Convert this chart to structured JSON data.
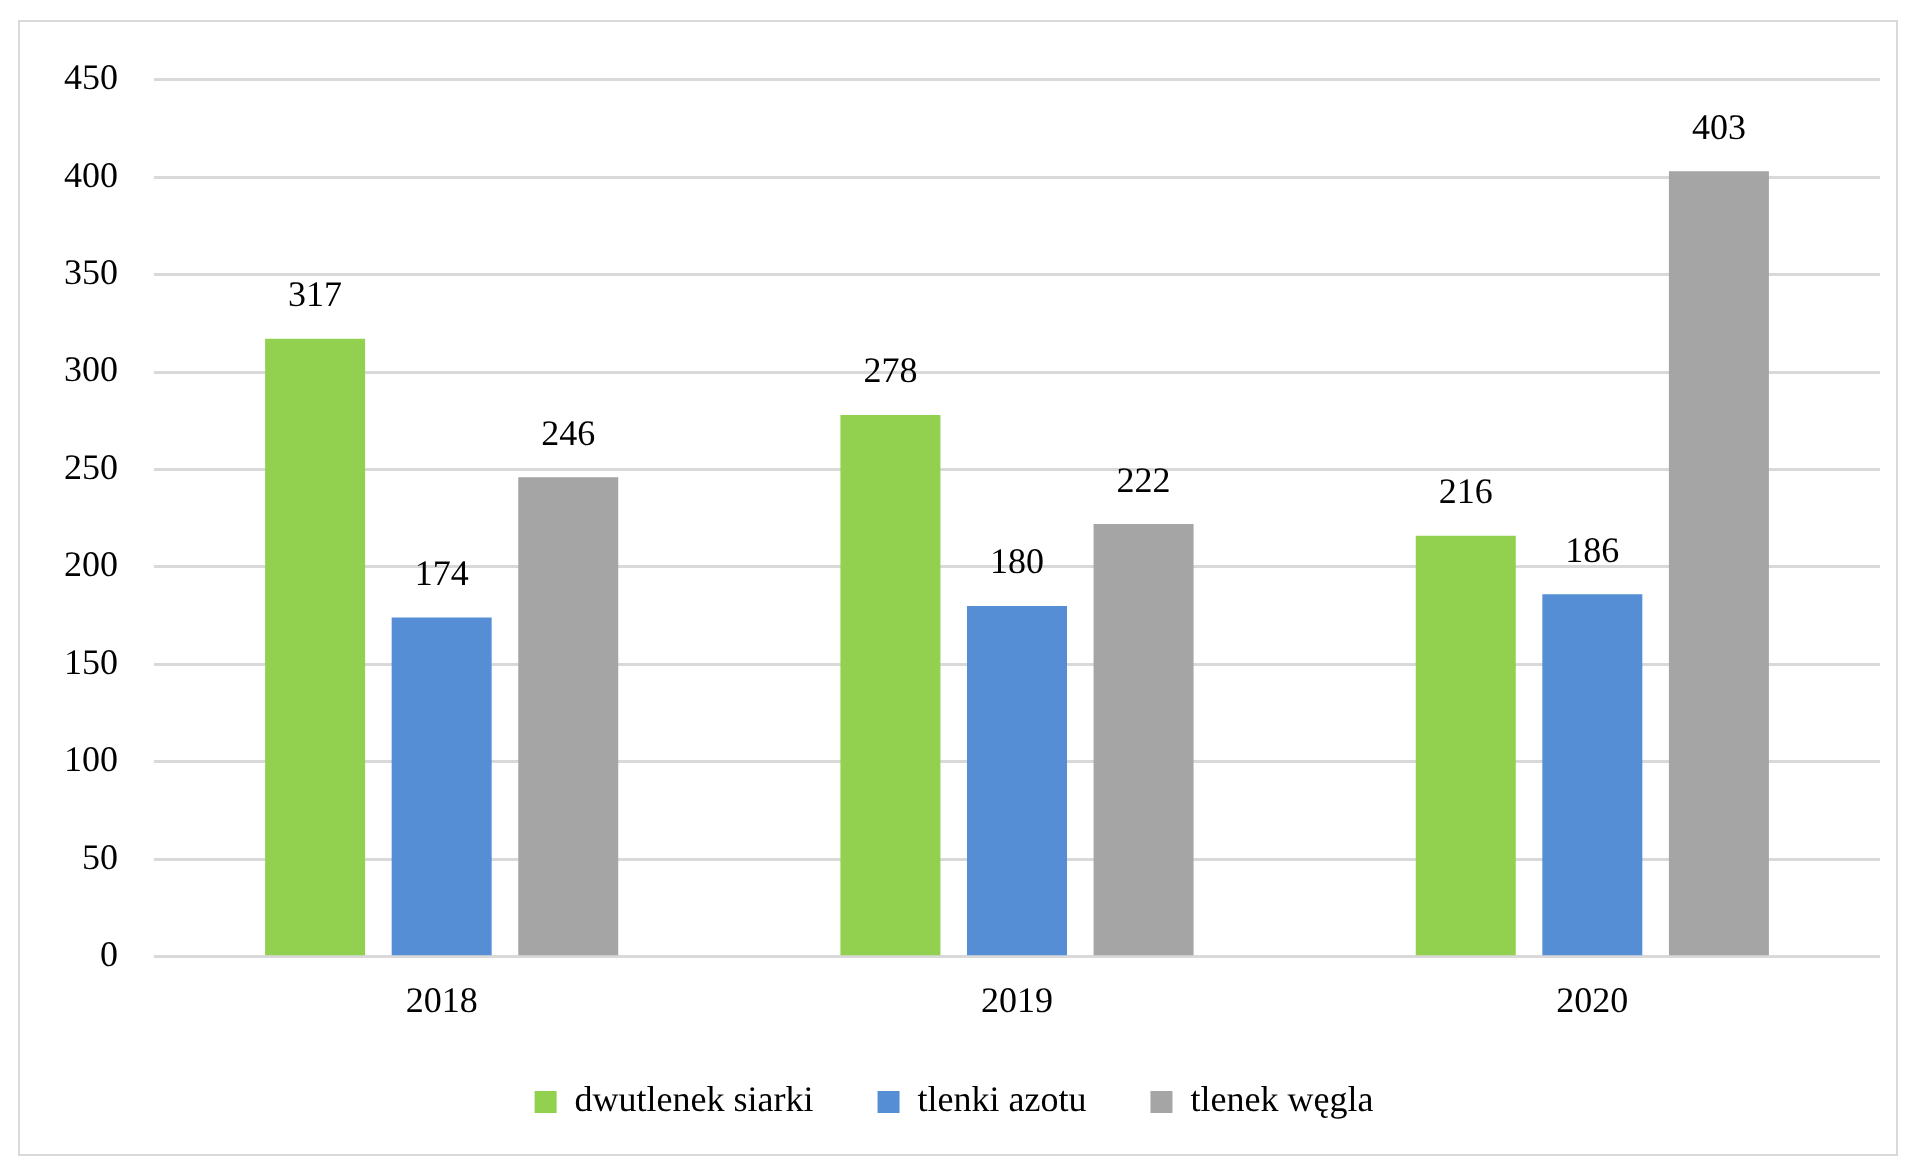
{
  "chart_data": {
    "type": "bar",
    "categories": [
      "2018",
      "2019",
      "2020"
    ],
    "series": [
      {
        "name": "dwutlenek siarki",
        "color": "#92d050",
        "values": [
          317,
          278,
          216
        ]
      },
      {
        "name": "tlenki azotu",
        "color": "#558ed5",
        "values": [
          174,
          180,
          186
        ]
      },
      {
        "name": "tlenek węgla",
        "color": "#a5a5a5",
        "values": [
          246,
          222,
          403
        ]
      }
    ],
    "ylim": [
      0,
      450
    ],
    "yticks": [
      0,
      50,
      100,
      150,
      200,
      250,
      300,
      350,
      400,
      450
    ],
    "grid": "y",
    "legend": "bottom",
    "data_labels": true
  }
}
